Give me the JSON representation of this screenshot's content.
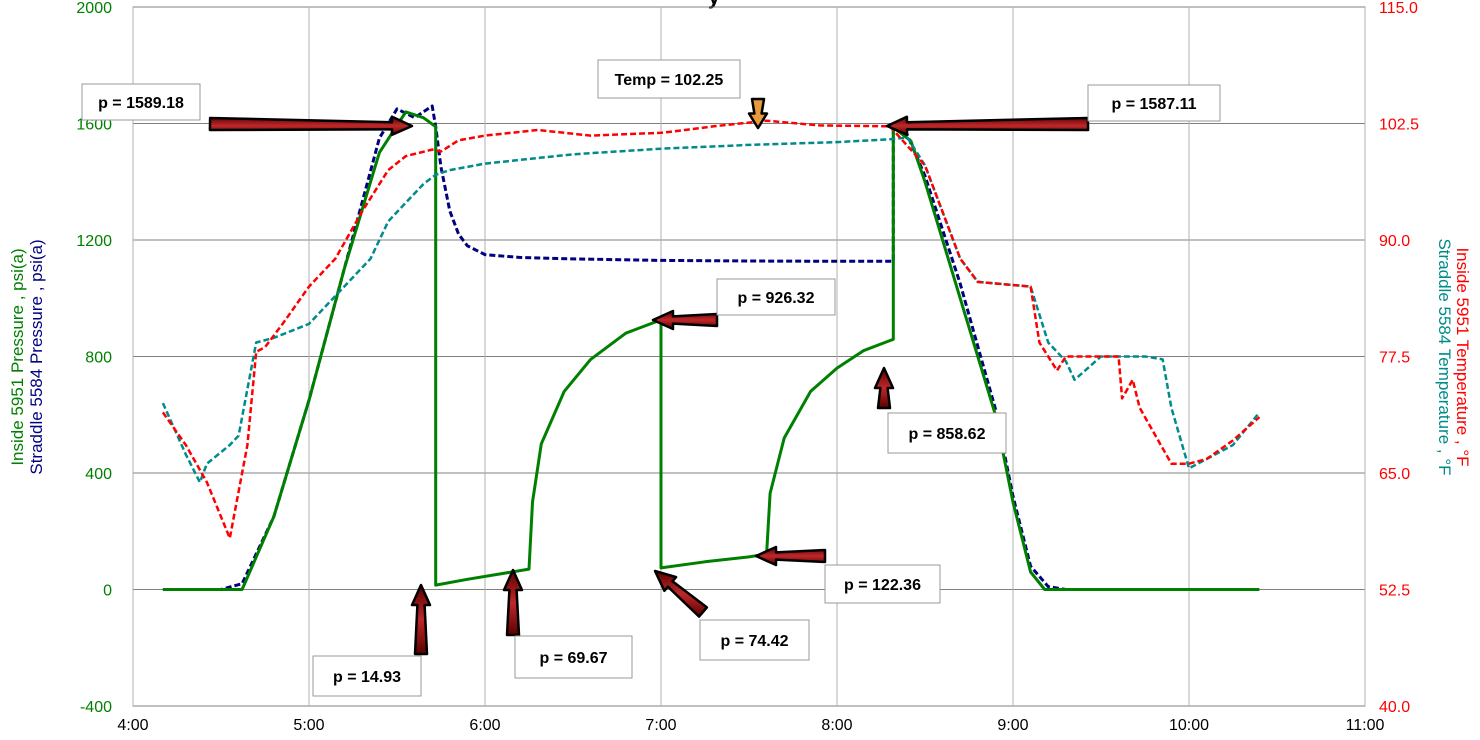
{
  "chart_data": {
    "type": "line",
    "x_axis": {
      "ticks": [
        "4:00",
        "5:00",
        "6:00",
        "7:00",
        "8:00",
        "9:00",
        "10:00",
        "11:00"
      ],
      "range_hours": [
        4,
        11
      ]
    },
    "y_left": {
      "label_line1": "Inside 5951 Pressure , psi(a)",
      "label_line2": "Straddle 5584 Pressure , psi(a)",
      "range": [
        -400,
        2000
      ],
      "ticks": [
        "-400",
        "0",
        "400",
        "800",
        "1200",
        "1600",
        "2000"
      ]
    },
    "y_right": {
      "label_line1": "Inside 5951 Temperature , °F",
      "label_line2": "Straddle 5584 Temperature , °F",
      "range": [
        40,
        115
      ],
      "ticks": [
        "40.0",
        "52.5",
        "65.0",
        "77.5",
        "90.0",
        "102.5",
        "115.0"
      ]
    },
    "title_fragment": "y",
    "grid": true,
    "series": [
      {
        "name": "Inside 5951 Pressure",
        "axis": "left",
        "color": "#008000",
        "dash": "solid",
        "x": [
          4.17,
          4.5,
          4.62,
          4.8,
          5.0,
          5.2,
          5.4,
          5.55,
          5.65,
          5.72,
          5.72,
          5.9,
          6.1,
          6.25,
          6.27,
          6.32,
          6.45,
          6.6,
          6.8,
          7.0,
          7.0,
          7.25,
          7.5,
          7.6,
          7.62,
          7.7,
          7.85,
          8.0,
          8.15,
          8.32,
          8.32,
          8.42,
          8.5,
          8.7,
          8.9,
          9.0,
          9.1,
          9.18,
          9.3,
          10.4
        ],
        "y": [
          0,
          0,
          0,
          250,
          650,
          1100,
          1500,
          1640,
          1620,
          1589,
          15,
          35,
          55,
          70,
          300,
          500,
          680,
          790,
          880,
          926,
          74,
          95,
          112,
          122,
          330,
          520,
          680,
          760,
          820,
          859,
          1587,
          1540,
          1400,
          1000,
          600,
          300,
          60,
          0,
          0,
          0
        ]
      },
      {
        "name": "Straddle 5584 Pressure",
        "axis": "left",
        "color": "#000080",
        "dash": "dashed",
        "x": [
          4.17,
          4.5,
          4.62,
          4.8,
          5.0,
          5.2,
          5.4,
          5.5,
          5.6,
          5.7,
          5.72,
          5.75,
          5.8,
          5.85,
          5.9,
          6.0,
          6.2,
          6.5,
          7.0,
          7.5,
          8.0,
          8.32,
          8.32,
          8.4,
          8.5,
          8.7,
          8.9,
          9.0,
          9.1,
          9.2,
          9.3,
          10.4
        ],
        "y": [
          0,
          0,
          20,
          250,
          650,
          1100,
          1550,
          1650,
          1620,
          1660,
          1589,
          1450,
          1300,
          1220,
          1180,
          1150,
          1140,
          1135,
          1130,
          1128,
          1127,
          1127,
          1587,
          1560,
          1420,
          1050,
          620,
          320,
          80,
          10,
          0,
          0
        ]
      },
      {
        "name": "Inside 5951 Temperature",
        "axis": "right",
        "color": "#ff0000",
        "dash": "dashed",
        "x": [
          4.17,
          4.3,
          4.42,
          4.55,
          4.6,
          4.65,
          4.7,
          4.75,
          4.85,
          5.0,
          5.15,
          5.3,
          5.45,
          5.55,
          5.7,
          5.75,
          5.85,
          6.0,
          6.3,
          6.6,
          7.0,
          7.05,
          7.3,
          7.6,
          7.9,
          8.3,
          8.5,
          8.7,
          8.8,
          9.1,
          9.15,
          9.25,
          9.3,
          9.6,
          9.62,
          9.68,
          9.72,
          9.9,
          10.0,
          10.1,
          10.25,
          10.4
        ],
        "y": [
          71.5,
          68,
          64,
          58,
          63,
          68,
          78,
          78.5,
          81,
          85,
          88,
          93,
          97.5,
          99,
          99.7,
          99.5,
          100.7,
          101.2,
          101.8,
          101.2,
          101.5,
          101.6,
          102.2,
          102.8,
          102.3,
          102.2,
          98,
          88,
          85.5,
          85,
          79,
          76,
          77.5,
          77.5,
          73,
          75,
          72,
          66,
          66,
          66.5,
          68.5,
          71
        ]
      },
      {
        "name": "Straddle 5584 Temperature",
        "axis": "right",
        "color": "#008b8b",
        "dash": "dashed",
        "x": [
          4.17,
          4.3,
          4.38,
          4.42,
          4.55,
          4.6,
          4.65,
          4.7,
          4.8,
          5.0,
          5.2,
          5.35,
          5.45,
          5.55,
          5.65,
          5.72,
          5.8,
          6.0,
          6.5,
          7.0,
          7.5,
          8.0,
          8.3,
          8.4,
          8.5,
          8.6,
          8.7,
          8.8,
          9.1,
          9.2,
          9.3,
          9.35,
          9.5,
          9.75,
          9.85,
          9.9,
          10.0,
          10.1,
          10.25,
          10.4
        ],
        "y": [
          72.5,
          67,
          64,
          66,
          68,
          69,
          74,
          79,
          79.5,
          81,
          85,
          88,
          92,
          94,
          96,
          97,
          97.5,
          98.2,
          99.2,
          99.8,
          100.2,
          100.5,
          100.8,
          101,
          98,
          93,
          88,
          85.5,
          85,
          79,
          77,
          75,
          77.5,
          77.5,
          77.2,
          72,
          65.5,
          66.5,
          68,
          71.5
        ]
      }
    ],
    "annotations": [
      {
        "text": "p = 1589.18"
      },
      {
        "text": "Temp = 102.25"
      },
      {
        "text": "p = 1587.11"
      },
      {
        "text": "p = 926.32"
      },
      {
        "text": "p = 858.62"
      },
      {
        "text": "p = 14.93"
      },
      {
        "text": "p = 69.67"
      },
      {
        "text": "p = 74.42"
      },
      {
        "text": "p = 122.36"
      }
    ]
  }
}
